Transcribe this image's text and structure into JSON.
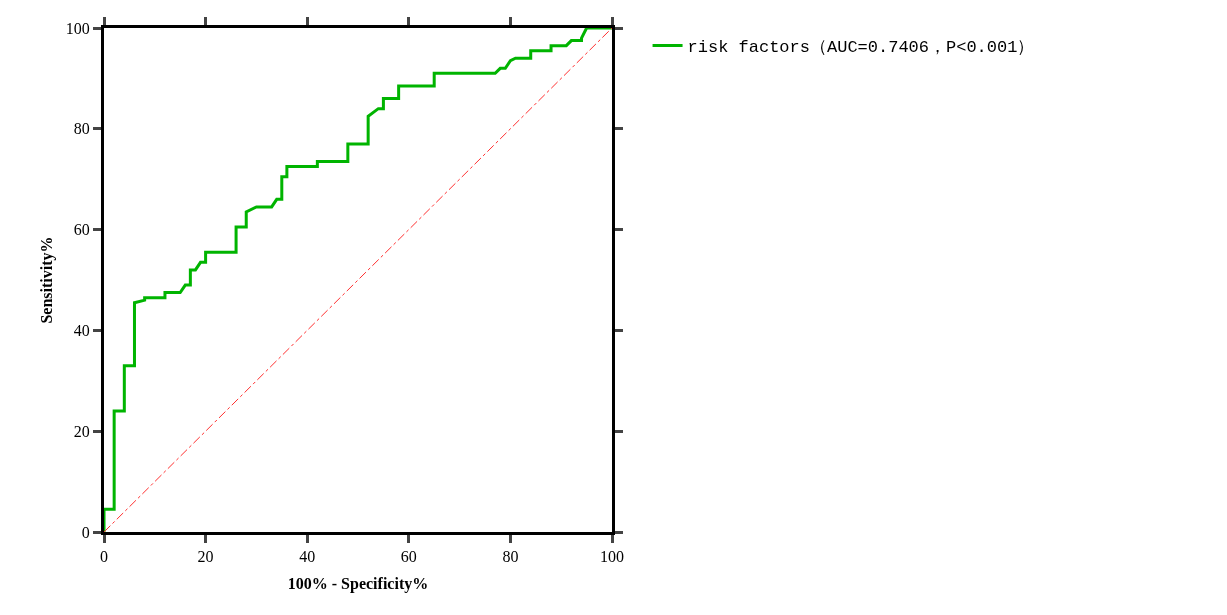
{
  "chart_data": {
    "type": "line",
    "xlabel": "100% - Specificity%",
    "ylabel": "Sensitivity%",
    "xlim": [
      0,
      100
    ],
    "ylim": [
      0,
      100
    ],
    "xticks": [
      0,
      20,
      40,
      60,
      80,
      100
    ],
    "yticks": [
      0,
      20,
      40,
      60,
      80,
      100
    ],
    "legend": "top right",
    "marker": "none",
    "series": [
      {
        "name": "risk factors（AUC=0.7406，P<0.001）",
        "color": "#00b400",
        "type": "step",
        "line_style": "solid",
        "x": [
          0,
          0,
          2,
          2,
          4,
          4,
          6,
          6,
          8,
          8,
          12,
          12,
          15,
          16,
          17,
          17,
          18,
          19,
          20,
          20,
          26,
          26,
          28,
          28,
          30,
          33,
          34,
          35,
          35,
          36,
          36,
          42,
          42,
          48,
          48,
          52,
          52,
          54,
          55,
          55,
          58,
          58,
          65,
          65,
          77,
          78,
          79,
          80,
          81,
          84,
          84,
          88,
          88,
          91,
          92,
          94,
          94,
          95,
          100
        ],
        "values": [
          0,
          4.5,
          4.5,
          24,
          24,
          33,
          33,
          45.5,
          46,
          46.5,
          46.5,
          47.5,
          47.5,
          49,
          49,
          52,
          52,
          53.5,
          53.5,
          55.5,
          55.5,
          60.5,
          60.5,
          63.5,
          64.5,
          64.5,
          66,
          66,
          70.5,
          70.5,
          72.5,
          72.5,
          73.5,
          73.5,
          77,
          77,
          82.5,
          84,
          84,
          86,
          86,
          88.5,
          88.5,
          91,
          91,
          92,
          92,
          93.5,
          94,
          94,
          95.5,
          95.5,
          96.5,
          96.5,
          97.5,
          97.5,
          98,
          100,
          100
        ]
      },
      {
        "color": "#ff3030",
        "line_style": "dashed",
        "x": [
          0,
          100
        ],
        "values": [
          0,
          100
        ]
      }
    ]
  }
}
